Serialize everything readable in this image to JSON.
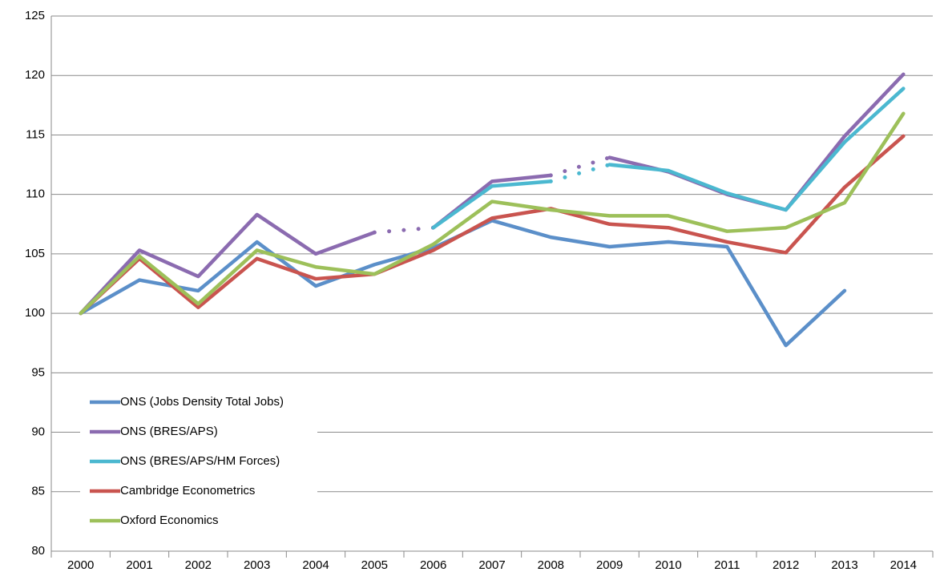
{
  "chart_data": {
    "type": "line",
    "categories": [
      "2000",
      "2001",
      "2002",
      "2003",
      "2004",
      "2005",
      "2006",
      "2007",
      "2008",
      "2009",
      "2010",
      "2011",
      "2012",
      "2013",
      "2014"
    ],
    "series": [
      {
        "name": "ONS (Jobs Density Total Jobs)",
        "color": "#5b8fc9",
        "values": [
          100,
          102.8,
          101.9,
          106.0,
          102.3,
          104.1,
          105.5,
          107.8,
          106.4,
          105.6,
          106.0,
          105.6,
          97.3,
          101.9,
          null
        ]
      },
      {
        "name": "ONS (BRES/APS)",
        "color": "#8b6bb0",
        "values": [
          100,
          105.3,
          103.1,
          108.3,
          105.0,
          106.8,
          107.2,
          111.1,
          111.6,
          113.1,
          111.9,
          110.0,
          108.7,
          114.9,
          120.1
        ],
        "dotted_segments": [
          5,
          8
        ]
      },
      {
        "name": "ONS (BRES/APS/HM Forces)",
        "color": "#4bb8d0",
        "values": [
          null,
          null,
          null,
          null,
          null,
          null,
          107.2,
          110.7,
          111.1,
          112.5,
          112.0,
          110.1,
          108.7,
          114.4,
          118.9
        ],
        "dotted_segments": [
          8
        ]
      },
      {
        "name": "Cambridge Econometrics",
        "color": "#c9544f",
        "values": [
          100,
          104.6,
          100.5,
          104.6,
          102.9,
          103.3,
          105.3,
          108.0,
          108.8,
          107.5,
          107.2,
          106.0,
          105.1,
          110.6,
          114.9
        ]
      },
      {
        "name": "Oxford Economics",
        "color": "#9dc05a",
        "values": [
          100,
          104.8,
          100.8,
          105.3,
          103.9,
          103.3,
          105.8,
          109.4,
          108.7,
          108.2,
          108.2,
          106.9,
          107.2,
          109.3,
          116.8
        ]
      }
    ],
    "ylim": [
      80,
      125
    ],
    "yticks": [
      80,
      85,
      90,
      95,
      100,
      105,
      110,
      115,
      120,
      125
    ],
    "grid": true,
    "legend": "lower-left"
  }
}
